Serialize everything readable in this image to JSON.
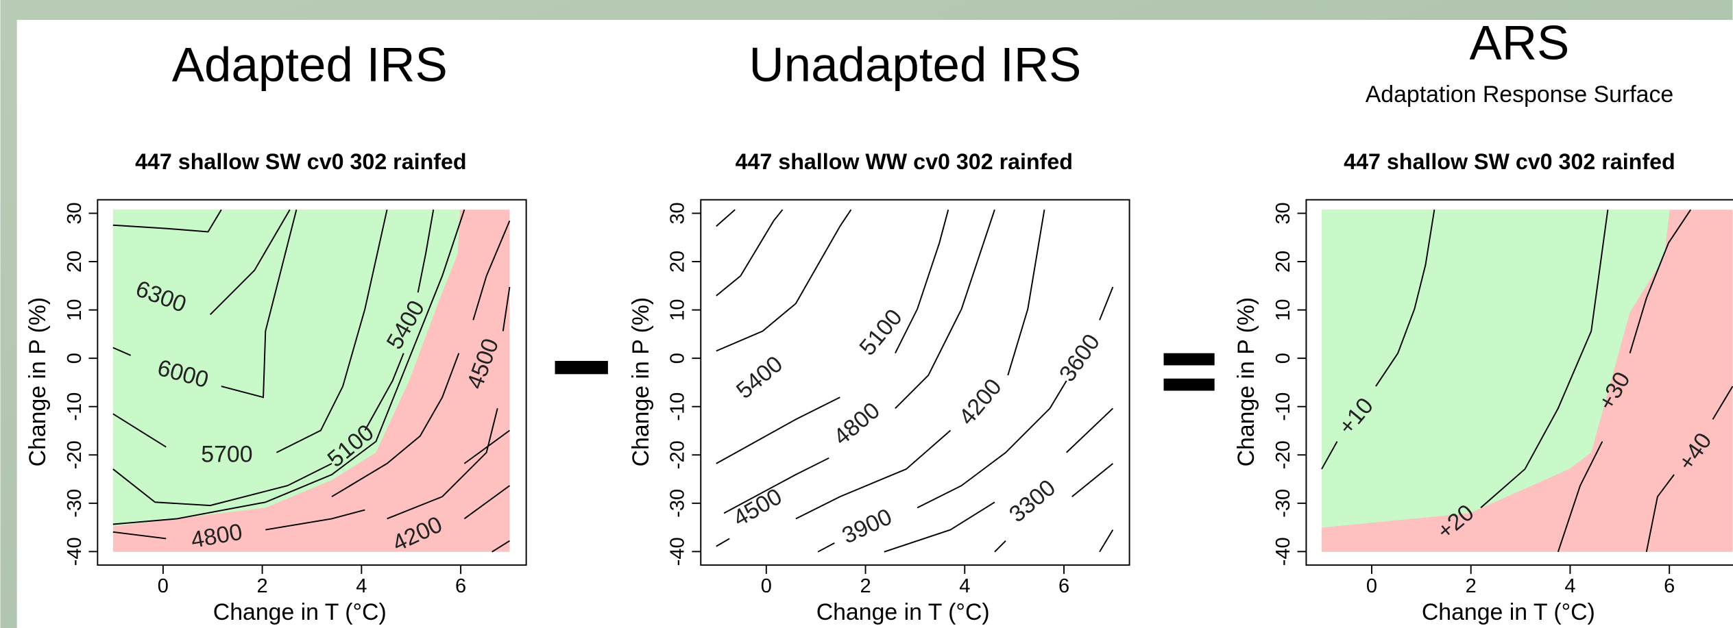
{
  "header": {
    "left": "Adapted IRS",
    "middle": "Unadapted IRS",
    "right": "ARS",
    "right_subtitle": "Adaptation Response Surface"
  },
  "chart_data": [
    {
      "type": "contour",
      "title": "447 shallow SW cv0 302 rainfed",
      "xlabel": "Change in T (°C)",
      "ylabel": "Change in P (%)",
      "xlim": [
        -1.32,
        7.32
      ],
      "ylim": [
        -42.8,
        32.8
      ],
      "xticks": [
        0,
        2,
        4,
        6
      ],
      "yticks": [
        -40,
        -30,
        -20,
        -10,
        0,
        10,
        20,
        30
      ],
      "contour_labels": [
        "6300",
        "6000",
        "5700",
        "5400",
        "5100",
        "4500",
        "4800",
        "4200"
      ]
    },
    {
      "type": "contour",
      "title": "447 shallow WW cv0 302 rainfed",
      "xlabel": "Change in T (°C)",
      "ylabel": "Change in P (%)",
      "xlim": [
        -1.32,
        7.32
      ],
      "ylim": [
        -42.8,
        32.8
      ],
      "xticks": [
        0,
        2,
        4,
        6
      ],
      "yticks": [
        -40,
        -30,
        -20,
        -10,
        0,
        10,
        20,
        30
      ],
      "contour_labels": [
        "5100",
        "5400",
        "4800",
        "4200",
        "3600",
        "4500",
        "3900",
        "3300"
      ]
    },
    {
      "type": "contour",
      "title": "447 shallow SW cv0 302 rainfed",
      "xlabel": "Change in T (°C)",
      "ylabel": "Change in P (%)",
      "xlim": [
        -1.32,
        7.32
      ],
      "ylim": [
        -42.8,
        32.8
      ],
      "xticks": [
        0,
        2,
        4,
        6
      ],
      "yticks": [
        -40,
        -30,
        -20,
        -10,
        0,
        10,
        20,
        30
      ],
      "contour_labels": [
        "+10",
        "+20",
        "+30",
        "+40"
      ]
    }
  ]
}
